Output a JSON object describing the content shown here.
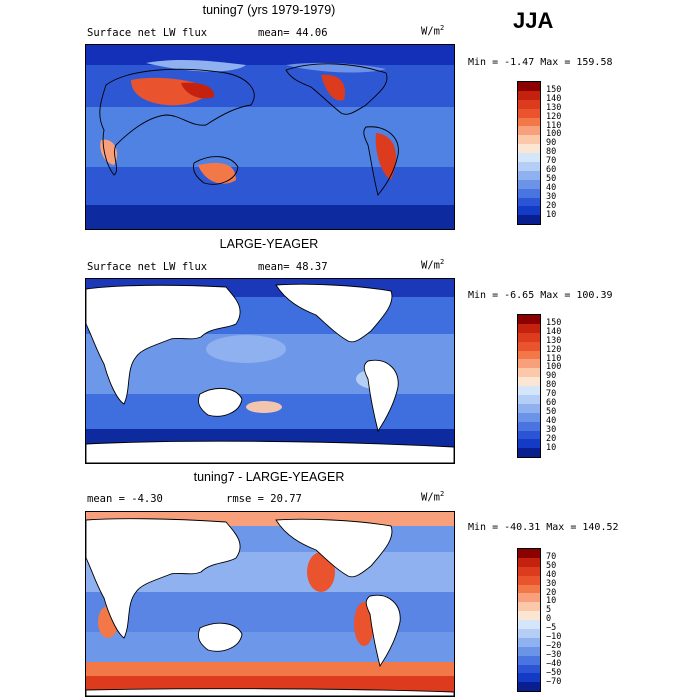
{
  "season": "JJA",
  "panels": [
    {
      "title": "tuning7 (yrs 1979-1979)",
      "left_label": "Surface net LW flux",
      "mid_label": "mean=  44.06",
      "units": "W/m",
      "units_sup": "2",
      "minmax": "Min =  -1.47 Max = 159.58",
      "levels": [
        "150",
        "140",
        "130",
        "120",
        "110",
        "100",
        "90",
        "80",
        "70",
        "60",
        "50",
        "40",
        "30",
        "20",
        "10"
      ],
      "colors": [
        "#8b0000",
        "#c4220f",
        "#dc3b1e",
        "#e9542f",
        "#f27848",
        "#f7a07b",
        "#fbc9a9",
        "#fbe6d4",
        "#d6e6fa",
        "#b5cef5",
        "#8fb1ef",
        "#6b93e8",
        "#4a74e0",
        "#2c55d6",
        "#143bc6",
        "#0a1f8f"
      ],
      "map": {
        "ocean": "#3f6fde",
        "land": "#3f6fde",
        "hot": "#e06a3c",
        "coast": "#000000"
      }
    },
    {
      "title": "LARGE-YEAGER",
      "left_label": "Surface net LW flux",
      "mid_label": "mean=  48.37",
      "units": "W/m",
      "units_sup": "2",
      "minmax": "Min =  -6.65 Max = 100.39",
      "levels": [
        "150",
        "140",
        "130",
        "120",
        "110",
        "100",
        "90",
        "80",
        "70",
        "60",
        "50",
        "40",
        "30",
        "20",
        "10"
      ],
      "colors": [
        "#8b0000",
        "#c4220f",
        "#dc3b1e",
        "#e9542f",
        "#f27848",
        "#f7a07b",
        "#fbc9a9",
        "#fbe6d4",
        "#d6e6fa",
        "#b5cef5",
        "#8fb1ef",
        "#6b93e8",
        "#4a74e0",
        "#2c55d6",
        "#143bc6",
        "#0a1f8f"
      ],
      "map": {
        "ocean": "#4d7ee2",
        "land": "#ffffff",
        "hot": "#f2b69a",
        "coast": "#000000"
      }
    },
    {
      "title": "tuning7 - LARGE-YEAGER",
      "left_label": "mean =  -4.30",
      "mid_label": "rmse =  20.77",
      "units": "W/m",
      "units_sup": "2",
      "minmax": "Min = -40.31 Max = 140.52",
      "levels": [
        "70",
        "50",
        "40",
        "30",
        "20",
        "10",
        "5",
        "0",
        "−5",
        "−10",
        "−20",
        "−30",
        "−40",
        "−50",
        "−70"
      ],
      "colors": [
        "#8b0000",
        "#c4220f",
        "#dc3b1e",
        "#e9542f",
        "#f27848",
        "#f7a07b",
        "#fbc9a9",
        "#fbe6d4",
        "#d6e6fa",
        "#b5cef5",
        "#8fb1ef",
        "#6b93e8",
        "#4a74e0",
        "#2c55d6",
        "#143bc6",
        "#0a1f8f"
      ],
      "map": {
        "ocean": "#7da2ea",
        "land": "#ffffff",
        "hot": "#ef7a50",
        "coast": "#000000"
      }
    }
  ]
}
